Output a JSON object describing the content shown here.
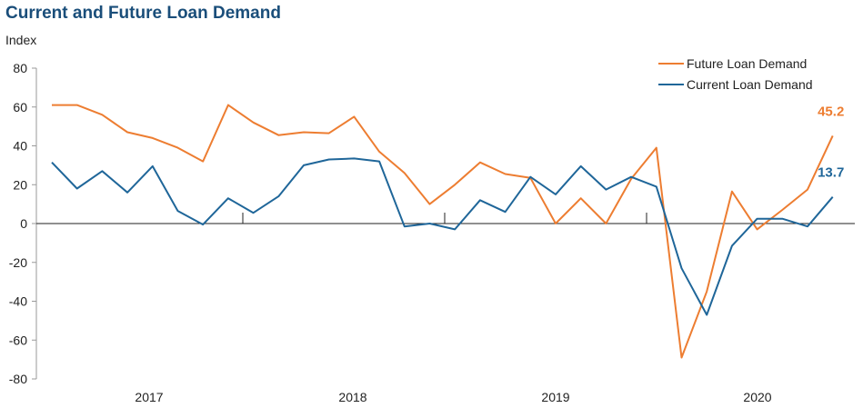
{
  "chart_data": {
    "type": "line",
    "title": "Current and Future Loan Demand",
    "ylabel": "Index",
    "ylim": [
      -80,
      80
    ],
    "yticks": [
      80,
      60,
      40,
      20,
      0,
      -20,
      -40,
      -60,
      -80
    ],
    "year_labels": [
      "2017",
      "2018",
      "2019",
      "2020"
    ],
    "legend_position": "top-right",
    "series": [
      {
        "name": "Future Loan Demand",
        "color": "#ed7d31",
        "end_label": "45.2",
        "values": [
          61,
          61,
          56,
          47,
          44,
          39,
          32,
          61,
          52,
          45.5,
          47,
          46.5,
          55,
          37,
          26,
          10,
          20,
          31.5,
          25.5,
          23.5,
          0,
          13,
          0,
          23,
          39,
          -69,
          -35,
          16.5,
          -3,
          7,
          17.5,
          45.2
        ]
      },
      {
        "name": "Current Loan Demand",
        "color": "#1f6699",
        "end_label": "13.7",
        "values": [
          31.5,
          18,
          27,
          16,
          29.5,
          6.5,
          -0.5,
          13,
          5.5,
          14,
          30,
          33,
          33.5,
          32,
          -1.5,
          0,
          -3,
          12,
          6,
          24,
          15,
          29.5,
          17.5,
          24,
          19,
          -23,
          -47,
          -11.5,
          2.5,
          2.5,
          -1.5,
          13.7
        ]
      }
    ]
  }
}
